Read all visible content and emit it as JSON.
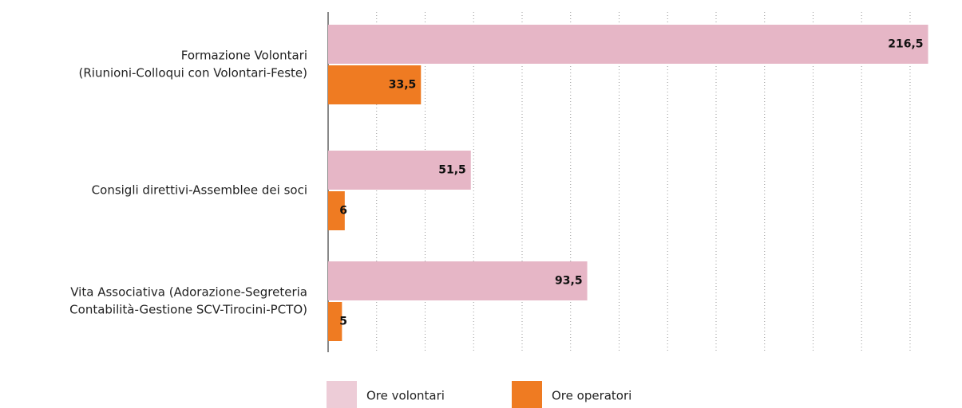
{
  "chart_data": {
    "type": "hbar",
    "categories": [
      [
        "Formazione Volontari",
        "(Riunioni-Colloqui con Volontari-Feste)"
      ],
      [
        "Consigli direttivi-Assemblee dei soci"
      ],
      [
        "Vita Associativa (Adorazione-Segreteria",
        "Contabilità-Gestione SCV-Tirocini-PCTO)"
      ]
    ],
    "series": [
      {
        "name": "Ore volontari",
        "color": "#e6b6c6",
        "values": [
          216.5,
          51.5,
          93.5
        ],
        "value_labels": [
          "216,5",
          "51,5",
          "93,5"
        ]
      },
      {
        "name": "Ore operatori",
        "color": "#ef7b22",
        "values": [
          33.5,
          6,
          5
        ],
        "value_labels": [
          "33,5",
          "6",
          "5"
        ]
      }
    ],
    "xlim": [
      0,
      217.5
    ],
    "xticks": [
      0,
      17.5,
      35,
      52.5,
      70,
      87.5,
      105,
      122.5,
      140,
      157.5,
      175,
      192.5,
      210
    ],
    "grid": true,
    "tick_labels": false,
    "legend": "bottom"
  }
}
